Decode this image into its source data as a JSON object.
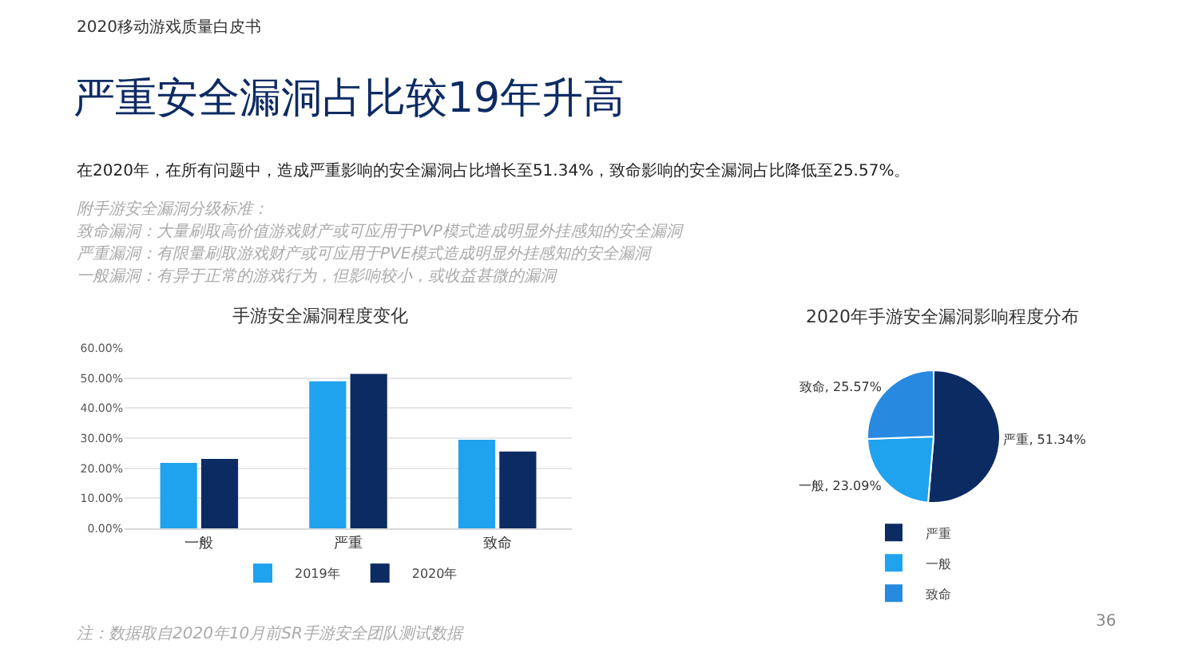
{
  "chart_data": [
    {
      "type": "bar",
      "title": "手游安全漏洞程度变化",
      "categories": [
        "一般",
        "严重",
        "致命"
      ],
      "series": [
        {
          "name": "2019年",
          "color": "#1fa3ee",
          "values": [
            21.8,
            48.9,
            29.5
          ]
        },
        {
          "name": "2020年",
          "color": "#0d2b63",
          "values": [
            23.09,
            51.34,
            25.57
          ]
        }
      ],
      "ylim": [
        0,
        60
      ],
      "yticks": [
        {
          "value": 0,
          "label": "0.00%"
        },
        {
          "value": 10,
          "label": "10.00%"
        },
        {
          "value": 20,
          "label": "20.00%"
        },
        {
          "value": 30,
          "label": "30.00%"
        },
        {
          "value": 40,
          "label": "40.00%"
        },
        {
          "value": 50,
          "label": "50.00%"
        },
        {
          "value": 60,
          "label": "60.00%"
        }
      ],
      "grid": "y",
      "legend": "bottom",
      "annotations": [
        "2020移动游戏质量白皮书",
        "严重安全漏洞占比较19年升高",
        "在2020年，在所有问题中，造成严重影响的安全漏洞占比增长至51.34%，致命影响的安全漏洞占比降低至25.57%。",
        "附手游安全漏洞分级标准：",
        "致命漏洞：大量刷取高价值游戏财产或可应用于PVP模式造成明显外挂感知的安全漏洞",
        "严重漏洞：有限量刷取游戏财产或可应用于PVE模式造成明显外挂感知的安全漏洞",
        "一般漏洞：有异于正常的游戏行为，但影响较小，或收益甚微的漏洞",
        "注：数据取自2020年10月前SR手游安全团队测试数据"
      ]
    },
    {
      "type": "pie",
      "title": "2020年手游安全漏洞影响程度分布",
      "categories": [
        "严重",
        "一般",
        "致命"
      ],
      "values": [
        51.34,
        23.09,
        25.57
      ],
      "colors": [
        "#0d2b63",
        "#1fa3ee",
        "#2789e0"
      ],
      "value_labels": [
        "严重, 51.34%",
        "一般, 23.09%",
        "致命, 25.57%"
      ],
      "legend": "bottom",
      "annotations": [
        "36"
      ]
    }
  ]
}
